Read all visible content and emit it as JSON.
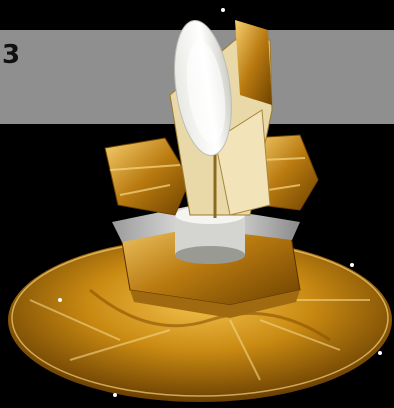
{
  "banner": {
    "label": "3",
    "color": "#8f8f8f"
  },
  "palette": {
    "background": "#000000",
    "gold_dark": "#7a4a00",
    "gold_mid": "#c98a12",
    "gold_light": "#f2c04a",
    "silver": "#d9d9d9",
    "dish_white": "#f2f2ee"
  },
  "subject": {
    "icon": "satellite-spacecraft-icon"
  }
}
